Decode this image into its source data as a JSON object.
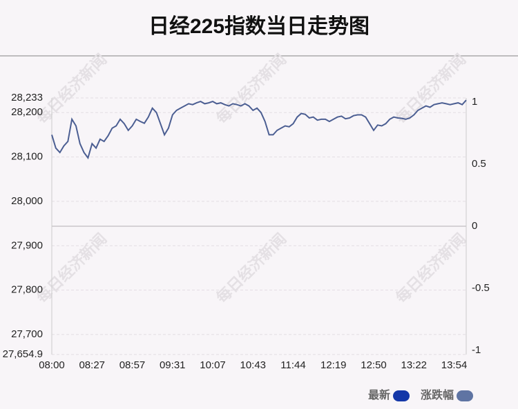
{
  "chart_data": {
    "type": "line",
    "title": "日经225指数当日走势图",
    "watermark": "每日经济新闻",
    "categories": [
      "08:00",
      null,
      null,
      null,
      null,
      null,
      null,
      null,
      null,
      null,
      "08:27",
      null,
      null,
      null,
      null,
      null,
      null,
      null,
      null,
      null,
      "08:57",
      null,
      null,
      null,
      null,
      null,
      null,
      null,
      null,
      null,
      "09:31",
      null,
      null,
      null,
      null,
      null,
      null,
      null,
      null,
      null,
      "10:07",
      null,
      null,
      null,
      null,
      null,
      null,
      null,
      null,
      null,
      "10:43",
      null,
      null,
      null,
      null,
      null,
      null,
      null,
      null,
      null,
      "11:44",
      null,
      null,
      null,
      null,
      null,
      null,
      null,
      null,
      null,
      "12:19",
      null,
      null,
      null,
      null,
      null,
      null,
      null,
      null,
      null,
      "12:50",
      null,
      null,
      null,
      null,
      null,
      null,
      null,
      null,
      null,
      "13:22",
      null,
      null,
      null,
      null,
      null,
      null,
      null,
      null,
      null,
      "13:54",
      null,
      null,
      null
    ],
    "series": [
      {
        "color": "#4b5e92",
        "values": [
          28150,
          28120,
          28110,
          28125,
          28135,
          28185,
          28170,
          28130,
          28110,
          28098,
          28130,
          28120,
          28140,
          28135,
          28148,
          28165,
          28170,
          28185,
          28175,
          28160,
          28170,
          28185,
          28180,
          28176,
          28190,
          28210,
          28200,
          28175,
          28150,
          28165,
          28195,
          28205,
          28210,
          28215,
          28220,
          28218,
          28222,
          28225,
          28220,
          28222,
          28225,
          28220,
          28222,
          28218,
          28215,
          28220,
          28218,
          28215,
          28220,
          28215,
          28205,
          28210,
          28200,
          28180,
          28150,
          28150,
          28160,
          28165,
          28170,
          28168,
          28175,
          28190,
          28198,
          28196,
          28188,
          28190,
          28183,
          28185,
          28185,
          28180,
          28185,
          28190,
          28192,
          28186,
          28188,
          28193,
          28195,
          28195,
          28190,
          28175,
          28160,
          28172,
          28170,
          28175,
          28185,
          28190,
          28188,
          28187,
          28185,
          28188,
          28195,
          28205,
          28210,
          28215,
          28212,
          28218,
          28220,
          28222,
          28220,
          28218,
          28220,
          28222,
          28218,
          28228
        ]
      }
    ],
    "legend": [
      {
        "name": "最新",
        "color": "#1437a8"
      },
      {
        "name": "涨跌幅",
        "color": "#5f74a3"
      }
    ],
    "ylim": [
      27654.9,
      28233
    ],
    "yticks": [
      {
        "value": 27654.9,
        "label": "27,654.9"
      },
      {
        "value": 27700,
        "label": "27,700"
      },
      {
        "value": 27800,
        "label": "27,800"
      },
      {
        "value": 27900,
        "label": "27,900"
      },
      {
        "value": 28000,
        "label": "28,000"
      },
      {
        "value": 28100,
        "label": "28,100"
      },
      {
        "value": 28200,
        "label": "28,200"
      },
      {
        "value": 28233,
        "label": "28,233"
      }
    ],
    "y2lim": [
      -1.0344,
      1.0344
    ],
    "y2ticks": [
      -1,
      -0.5,
      0,
      0.5,
      1
    ],
    "grid": true
  }
}
